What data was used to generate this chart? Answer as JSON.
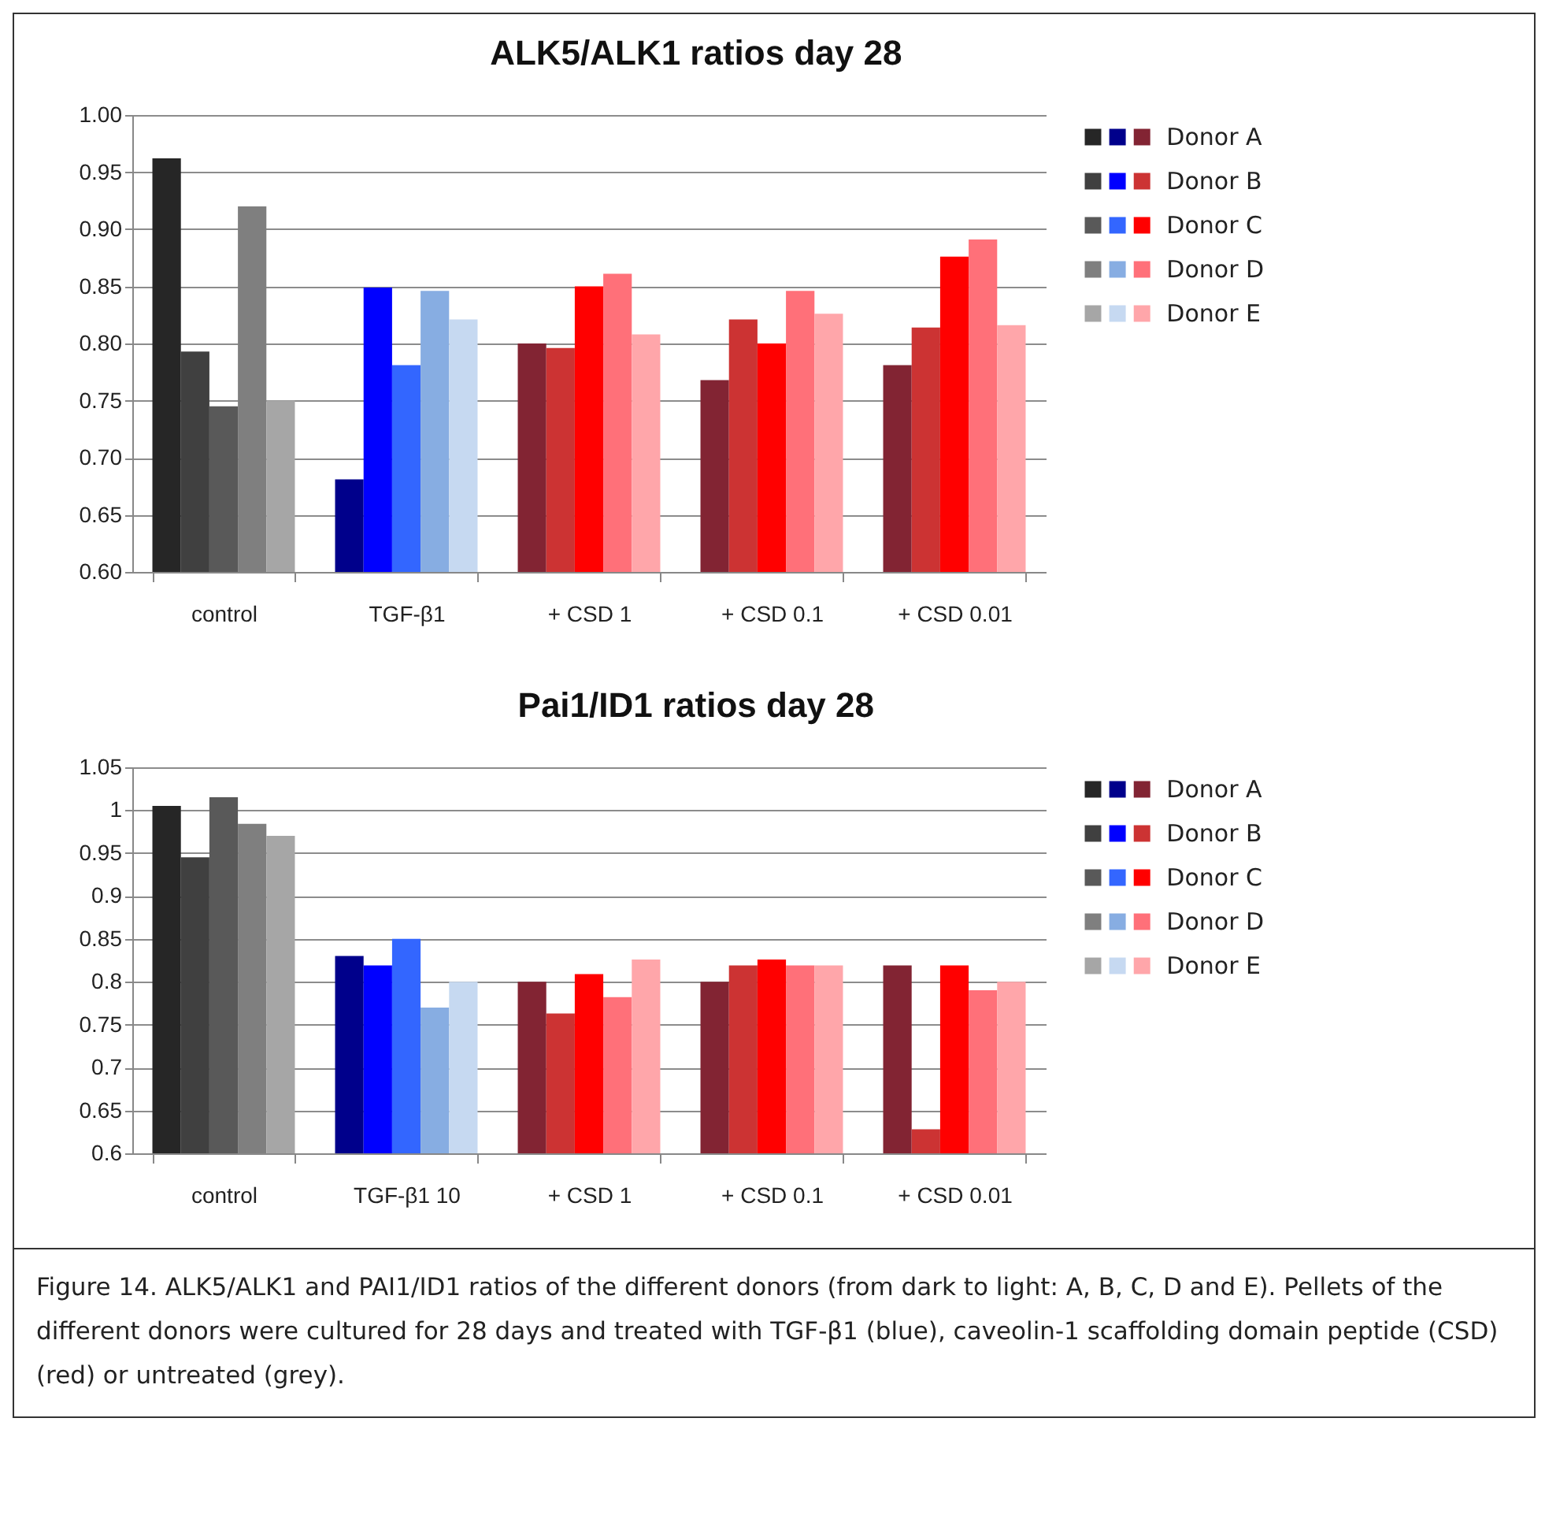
{
  "chart_data": [
    {
      "type": "bar",
      "title": "ALK5/ALK1 ratios day 28",
      "categories": [
        "control",
        "TGF-β1",
        "+ CSD 1",
        "+ CSD 0.1",
        "+ CSD 0.01"
      ],
      "ylim": [
        0.6,
        1.0
      ],
      "yticks": [
        {
          "value": 0.6,
          "label": "0.60"
        },
        {
          "value": 0.65,
          "label": "0.65"
        },
        {
          "value": 0.7,
          "label": "0.70"
        },
        {
          "value": 0.75,
          "label": "0.75"
        },
        {
          "value": 0.8,
          "label": "0.80"
        },
        {
          "value": 0.85,
          "label": "0.85"
        },
        {
          "value": 0.9,
          "label": "0.90"
        },
        {
          "value": 0.95,
          "label": "0.95"
        },
        {
          "value": 1.0,
          "label": "1.00"
        }
      ],
      "grid": "y",
      "legend": "right",
      "series": [
        {
          "name": "Donor A",
          "colors": [
            "#262626",
            "#00008b",
            "#822433",
            "#822433",
            "#822433"
          ],
          "values": [
            0.962,
            0.681,
            0.8,
            0.768,
            0.781
          ]
        },
        {
          "name": "Donor B",
          "colors": [
            "#404040",
            "#0000ff",
            "#cc3333",
            "#cc3333",
            "#cc3333"
          ],
          "values": [
            0.793,
            0.849,
            0.796,
            0.821,
            0.814
          ]
        },
        {
          "name": "Donor C",
          "colors": [
            "#595959",
            "#3366ff",
            "#ff0000",
            "#ff0000",
            "#ff0000"
          ],
          "values": [
            0.745,
            0.781,
            0.85,
            0.8,
            0.876
          ]
        },
        {
          "name": "Donor D",
          "colors": [
            "#7f7f7f",
            "#87ade2",
            "#ff7079",
            "#ff7079",
            "#ff7079"
          ],
          "values": [
            0.92,
            0.846,
            0.861,
            0.846,
            0.891
          ]
        },
        {
          "name": "Donor E",
          "colors": [
            "#a6a6a6",
            "#c6d9f1",
            "#ffa6aa",
            "#ffa6aa",
            "#ffa6aa"
          ],
          "values": [
            0.75,
            0.821,
            0.808,
            0.826,
            0.816
          ]
        }
      ]
    },
    {
      "type": "bar",
      "title": "Pai1/ID1 ratios day 28",
      "categories": [
        "control",
        "TGF-β1  10",
        "+ CSD 1",
        "+ CSD 0.1",
        "+ CSD 0.01"
      ],
      "ylim": [
        0.6,
        1.05
      ],
      "yticks": [
        0.6,
        0.65,
        0.7,
        0.75,
        0.8,
        0.85,
        0.9,
        0.95,
        1,
        1.05
      ],
      "grid": "y",
      "legend": "right",
      "annotations": [
        "Figure 14. ALK5/ALK1 and PAI1/ID1 ratios of the different donors (from dark to light: A, B, C, D and E). Pellets of the different donors were cultured for 28 days and treated with TGF-β1 (blue), caveolin-1 scaffolding domain peptide (CSD) (red) or untreated (grey)."
      ],
      "series": [
        {
          "name": "Donor A",
          "colors": [
            "#262626",
            "#00008b",
            "#822433",
            "#822433",
            "#822433"
          ],
          "values": [
            1.005,
            0.83,
            0.8,
            0.8,
            0.819
          ]
        },
        {
          "name": "Donor B",
          "colors": [
            "#404040",
            "#0000ff",
            "#cc3333",
            "#cc3333",
            "#cc3333"
          ],
          "values": [
            0.945,
            0.819,
            0.763,
            0.819,
            0.628
          ]
        },
        {
          "name": "Donor C",
          "colors": [
            "#595959",
            "#3366ff",
            "#ff0000",
            "#ff0000",
            "#ff0000"
          ],
          "values": [
            1.015,
            0.85,
            0.809,
            0.826,
            0.819
          ]
        },
        {
          "name": "Donor D",
          "colors": [
            "#7f7f7f",
            "#87ade2",
            "#ff7079",
            "#ff7079",
            "#ff7079"
          ],
          "values": [
            0.984,
            0.77,
            0.782,
            0.819,
            0.79
          ]
        },
        {
          "name": "Donor E",
          "colors": [
            "#a6a6a6",
            "#c6d9f1",
            "#ffa6aa",
            "#ffa6aa",
            "#ffa6aa"
          ],
          "values": [
            0.97,
            0.8,
            0.826,
            0.819,
            0.8
          ]
        }
      ]
    }
  ]
}
